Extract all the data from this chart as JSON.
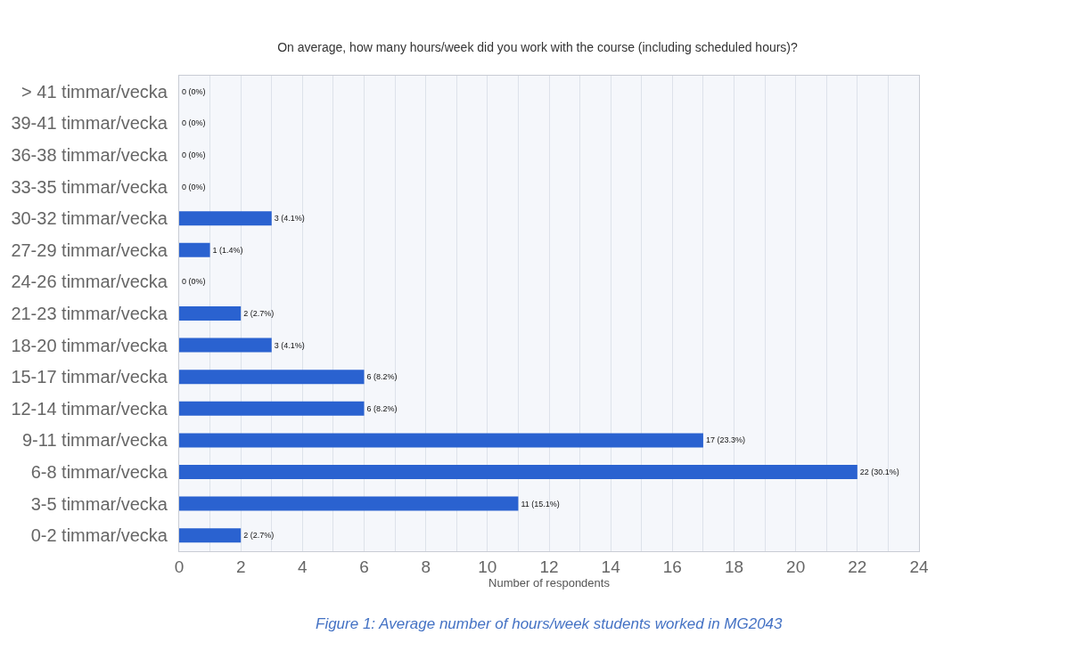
{
  "chart_data": {
    "type": "bar",
    "orientation": "horizontal",
    "title": "On average, how many hours/week did you work with the course (including scheduled hours)?",
    "xlabel": "Number of respondents",
    "categories": [
      "> 41 timmar/vecka",
      "39-41 timmar/vecka",
      "36-38 timmar/vecka",
      "33-35 timmar/vecka",
      "30-32 timmar/vecka",
      "27-29 timmar/vecka",
      "24-26 timmar/vecka",
      "21-23 timmar/vecka",
      "18-20 timmar/vecka",
      "15-17 timmar/vecka",
      "12-14 timmar/vecka",
      "9-11 timmar/vecka",
      "6-8 timmar/vecka",
      "3-5 timmar/vecka",
      "0-2 timmar/vecka"
    ],
    "values": [
      0,
      0,
      0,
      0,
      3,
      1,
      0,
      2,
      3,
      6,
      6,
      17,
      22,
      11,
      2
    ],
    "value_labels": [
      "0 (0%)",
      "0 (0%)",
      "0 (0%)",
      "0 (0%)",
      "3 (4.1%)",
      "1 (1.4%)",
      "0 (0%)",
      "2 (2.7%)",
      "3 (4.1%)",
      "6 (8.2%)",
      "6 (8.2%)",
      "17 (23.3%)",
      "22 (30.1%)",
      "11 (15.1%)",
      "2 (2.7%)"
    ],
    "color": "#2a62d0",
    "xlim": [
      0,
      24
    ],
    "xticks": [
      0,
      {
        "value": 1,
        "label": null
      },
      2,
      {
        "value": 3,
        "label": null
      },
      4,
      {
        "value": 5,
        "label": null
      },
      6,
      {
        "value": 7,
        "label": null
      },
      8,
      {
        "value": 9,
        "label": null
      },
      10,
      {
        "value": 11,
        "label": null
      },
      12,
      {
        "value": 13,
        "label": null
      },
      14,
      {
        "value": 15,
        "label": null
      },
      16,
      {
        "value": 17,
        "label": null
      },
      18,
      {
        "value": 19,
        "label": null
      },
      20,
      {
        "value": 21,
        "label": null
      },
      22,
      {
        "value": 23,
        "label": null
      },
      24
    ],
    "grid": "x",
    "legend": false,
    "annotations": [
      "Figure 1: Average number of hours/week students worked in MG2043"
    ]
  }
}
